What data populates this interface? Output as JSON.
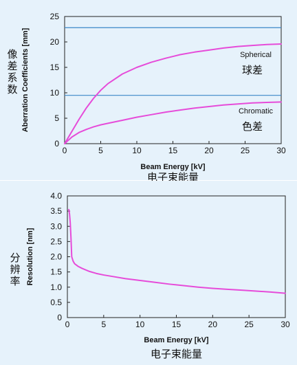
{
  "chart_data": [
    {
      "type": "line",
      "xlabel": "Beam Energy [kV]",
      "xlabel_cn": "电子束能量",
      "ylabel": "Aberration Coefficients [mm]",
      "ylabel_cn": "像差系数",
      "xlim": [
        0,
        30
      ],
      "ylim": [
        0,
        25
      ],
      "xticks": [
        "0",
        "5",
        "10",
        "15",
        "20",
        "25",
        "30"
      ],
      "yticks": [
        "0",
        "5",
        "10",
        "15",
        "20",
        "25"
      ],
      "grid": false,
      "hlines": [
        22.8,
        9.5
      ],
      "colors": {
        "background": "#e6f2fb",
        "curve": "#e64bd9",
        "hline": "#3a86c8"
      },
      "series": [
        {
          "name": "Spherical",
          "name_cn": "球差",
          "x": [
            0,
            1,
            2,
            3,
            4,
            5,
            6,
            8,
            10,
            12,
            14,
            16,
            18,
            20,
            22,
            24,
            26,
            28,
            30
          ],
          "y": [
            0,
            2.4,
            4.8,
            7.0,
            8.9,
            10.5,
            11.8,
            13.7,
            15.0,
            16.0,
            16.8,
            17.5,
            18.0,
            18.4,
            18.8,
            19.1,
            19.3,
            19.5,
            19.6
          ]
        },
        {
          "name": "Chromatic",
          "name_cn": "色差",
          "x": [
            0,
            1,
            2,
            3,
            4,
            5,
            6,
            8,
            10,
            12,
            14,
            16,
            18,
            20,
            22,
            24,
            26,
            28,
            30
          ],
          "y": [
            0,
            1.3,
            2.2,
            2.8,
            3.3,
            3.7,
            4.0,
            4.6,
            5.2,
            5.7,
            6.2,
            6.6,
            7.0,
            7.3,
            7.6,
            7.8,
            8.0,
            8.1,
            8.2
          ]
        }
      ]
    },
    {
      "type": "line",
      "xlabel": "Beam Energy [kV]",
      "xlabel_cn": "电子束能量",
      "ylabel": "Resolution [nm]",
      "ylabel_cn": "分辨率",
      "xlim": [
        0,
        30
      ],
      "ylim": [
        0,
        4.0
      ],
      "xticks": [
        "0",
        "5",
        "10",
        "15",
        "20",
        "25",
        "30"
      ],
      "yticks": [
        "0",
        "0.5",
        "1.0",
        "1.5",
        "2.0",
        "2.5",
        "3.0",
        "3.5",
        "4.0"
      ],
      "grid": false,
      "colors": {
        "background": "#e6f2fb",
        "curve": "#e64bd9"
      },
      "series": [
        {
          "x": [
            0.2,
            0.3,
            0.4,
            0.5,
            0.6,
            0.8,
            1,
            1.5,
            2,
            3,
            4,
            5,
            6,
            8,
            10,
            12,
            14,
            16,
            18,
            20,
            22,
            24,
            26,
            28,
            30
          ],
          "y": [
            3.55,
            3.4,
            3.1,
            2.6,
            2.0,
            1.85,
            1.77,
            1.68,
            1.62,
            1.52,
            1.45,
            1.4,
            1.36,
            1.28,
            1.22,
            1.16,
            1.1,
            1.05,
            1.0,
            0.96,
            0.93,
            0.9,
            0.87,
            0.84,
            0.8
          ]
        }
      ]
    }
  ]
}
